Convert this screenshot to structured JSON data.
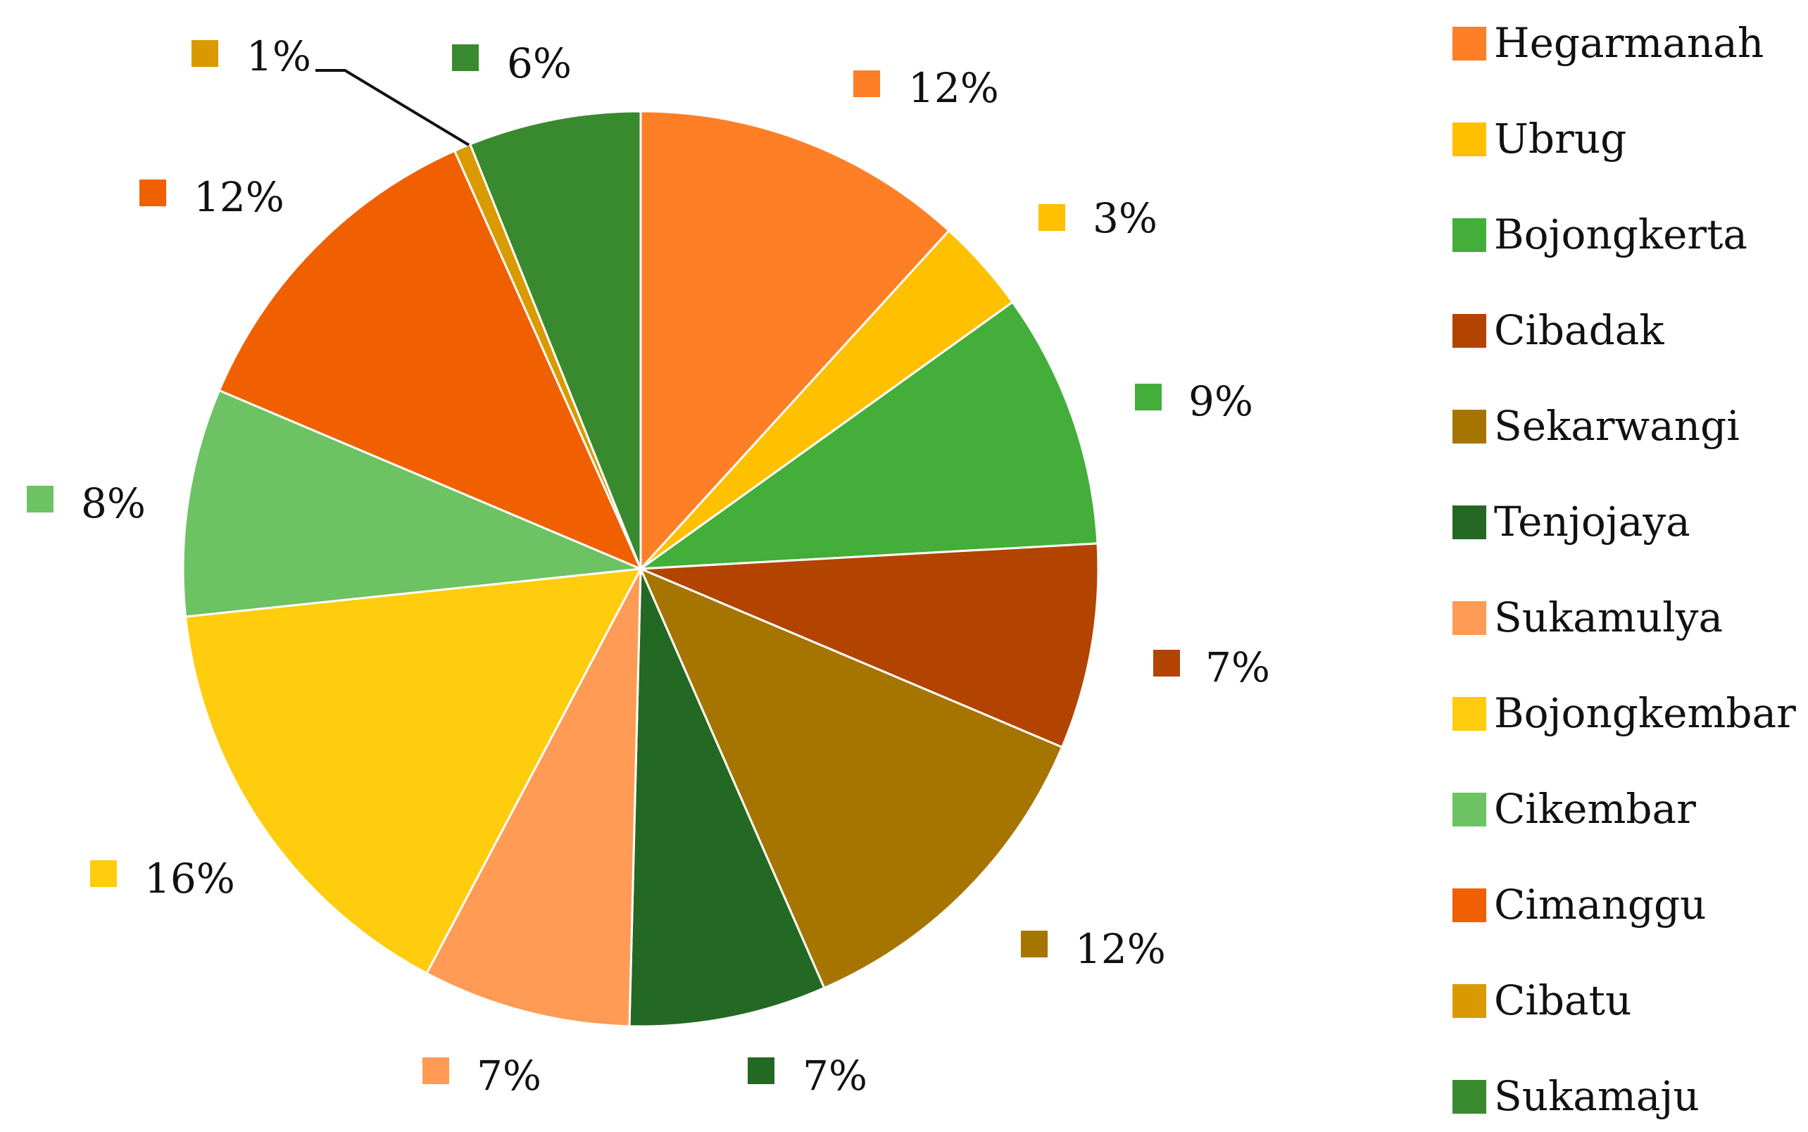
{
  "chart_data": {
    "type": "pie",
    "start_angle_deg": 0,
    "direction": "clockwise",
    "legend_position": "right",
    "slices": [
      {
        "name": "Hegarmanah",
        "value": 12,
        "label": "12%",
        "color": "#FF7F27"
      },
      {
        "name": "Ubrug",
        "value": 3.4,
        "label": "3%",
        "color": "#FFC000"
      },
      {
        "name": "Bojongkerta",
        "value": 9.2,
        "label": "9%",
        "color": "#43AE3A"
      },
      {
        "name": "Cibadak",
        "value": 7.4,
        "label": "7%",
        "color": "#B34400"
      },
      {
        "name": "Sekarwangi",
        "value": 12.3,
        "label": "12%",
        "color": "#A67500"
      },
      {
        "name": "Tenjojaya",
        "value": 7.1,
        "label": "7%",
        "color": "#246923"
      },
      {
        "name": "Sukamulya",
        "value": 7.5,
        "label": "7%",
        "color": "#FF9B55"
      },
      {
        "name": "Bojongkembar",
        "value": 15.9,
        "label": "16%",
        "color": "#FFCC0E"
      },
      {
        "name": "Cikembar",
        "value": 8.2,
        "label": "8%",
        "color": "#6DC263"
      },
      {
        "name": "Cimanggu",
        "value": 12.2,
        "label": "12%",
        "color": "#F06000"
      },
      {
        "name": "Cibatu",
        "value": 0.6,
        "label": "1%",
        "color": "#D99A00"
      },
      {
        "name": "Sukamaju",
        "value": 6.2,
        "label": "6%",
        "color": "#398A2F"
      }
    ]
  }
}
